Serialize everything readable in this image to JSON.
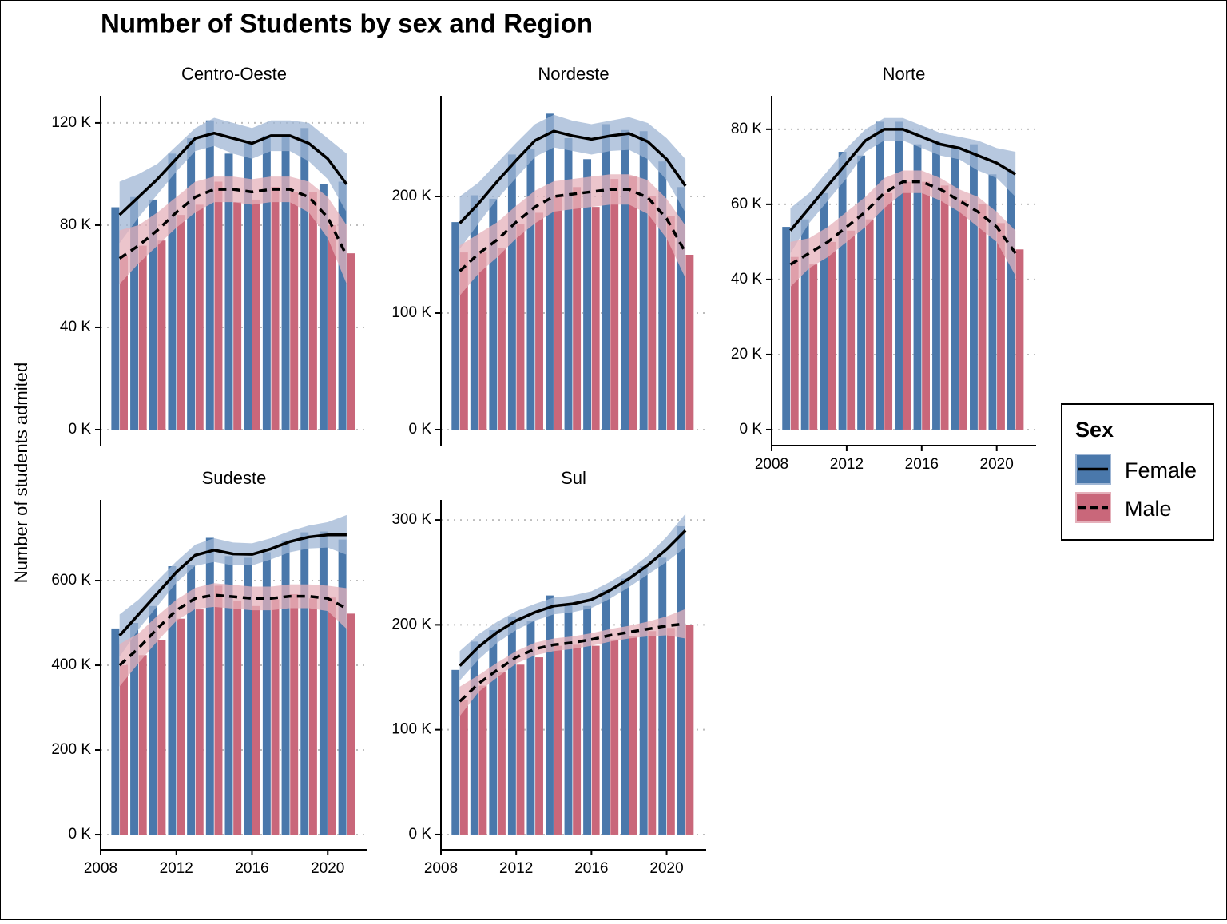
{
  "title": "Number of Students by sex and Region",
  "y_label": "Number of students admited",
  "legend_title": "Sex",
  "chart_data": [
    {
      "type": "bar",
      "title": "Centro-Oeste",
      "x": [
        2009,
        2010,
        2011,
        2012,
        2013,
        2014,
        2015,
        2016,
        2017,
        2018,
        2019,
        2020,
        2021
      ],
      "xlim": [
        2008,
        2022.1
      ],
      "ylim": [
        -6.25,
        130.6
      ],
      "yticks": [
        {
          "value": 0,
          "label": "0 K"
        },
        {
          "value": 40,
          "label": "40 K"
        },
        {
          "value": 80,
          "label": "80 K"
        },
        {
          "value": 120,
          "label": "120 K"
        }
      ],
      "grid": true,
      "series": [
        {
          "name": "Female",
          "color": "#4a78ab",
          "ribbon_color": "#9fb6d4",
          "values": [
            87,
            91,
            90,
            108,
            114,
            121,
            108,
            112,
            115,
            115,
            118,
            96,
            97
          ],
          "smooth": [
            84,
            91,
            98,
            106,
            114,
            116,
            114,
            112,
            115,
            115,
            112,
            106,
            96
          ],
          "smooth_lower": [
            73,
            83,
            92,
            101,
            109,
            111,
            108,
            106,
            109,
            109,
            105,
            98,
            85
          ],
          "smooth_upper": [
            97,
            100,
            104,
            111,
            118,
            122,
            120,
            118,
            121,
            121,
            120,
            114,
            108
          ]
        },
        {
          "name": "Male",
          "color": "#c9677a",
          "ribbon_color": "#e5b1bb",
          "values": [
            68,
            72,
            74,
            84,
            88,
            97,
            89,
            90,
            95,
            93,
            93,
            80,
            69
          ],
          "smooth": [
            67,
            72,
            78,
            85,
            91,
            94,
            94,
            93,
            94,
            94,
            91,
            83,
            68
          ],
          "smooth_lower": [
            57,
            65,
            72,
            79,
            85,
            89,
            89,
            88,
            89,
            89,
            85,
            75,
            57
          ],
          "smooth_upper": [
            78,
            80,
            85,
            91,
            97,
            99,
            99,
            98,
            99,
            99,
            97,
            91,
            80
          ]
        }
      ]
    },
    {
      "type": "bar",
      "title": "Nordeste",
      "x": [
        2009,
        2010,
        2011,
        2012,
        2013,
        2014,
        2015,
        2016,
        2017,
        2018,
        2019,
        2020,
        2021
      ],
      "xlim": [
        2008,
        2022.1
      ],
      "ylim": [
        -13.7,
        286.3
      ],
      "yticks": [
        {
          "value": 0,
          "label": "0 K"
        },
        {
          "value": 100,
          "label": "100 K"
        },
        {
          "value": 200,
          "label": "200 K"
        }
      ],
      "grid": true,
      "series": [
        {
          "name": "Female",
          "color": "#4a78ab",
          "ribbon_color": "#9fb6d4",
          "values": [
            178,
            201,
            198,
            236,
            241,
            271,
            250,
            232,
            262,
            257,
            256,
            230,
            208
          ],
          "smooth": [
            177,
            194,
            213,
            231,
            248,
            256,
            252,
            249,
            252,
            254,
            247,
            232,
            209
          ],
          "smooth_lower": [
            155,
            177,
            198,
            216,
            234,
            242,
            239,
            236,
            239,
            240,
            232,
            214,
            186
          ],
          "smooth_upper": [
            200,
            212,
            229,
            246,
            262,
            270,
            265,
            262,
            265,
            268,
            263,
            250,
            232
          ]
        },
        {
          "name": "Male",
          "color": "#c9677a",
          "ribbon_color": "#e5b1bb",
          "values": [
            152,
            152,
            156,
            176,
            186,
            200,
            208,
            191,
            215,
            217,
            200,
            183,
            150
          ],
          "smooth": [
            136,
            151,
            163,
            178,
            191,
            200,
            202,
            204,
            206,
            206,
            199,
            181,
            152
          ],
          "smooth_lower": [
            115,
            134,
            148,
            164,
            177,
            187,
            189,
            191,
            193,
            193,
            185,
            164,
            130
          ],
          "smooth_upper": [
            158,
            168,
            178,
            192,
            205,
            213,
            215,
            217,
            219,
            219,
            214,
            198,
            175
          ]
        }
      ]
    },
    {
      "type": "bar",
      "title": "Norte",
      "x": [
        2009,
        2010,
        2011,
        2012,
        2013,
        2014,
        2015,
        2016,
        2017,
        2018,
        2019,
        2020,
        2021
      ],
      "xlim": [
        2008,
        2022.1
      ],
      "xticks": [
        2008,
        2012,
        2016,
        2020
      ],
      "ylim": [
        -4.26,
        88.9
      ],
      "yticks": [
        {
          "value": 0,
          "label": "0 K"
        },
        {
          "value": 20,
          "label": "20 K"
        },
        {
          "value": 40,
          "label": "40 K"
        },
        {
          "value": 60,
          "label": "60 K"
        },
        {
          "value": 80,
          "label": "80 K"
        }
      ],
      "grid": true,
      "series": [
        {
          "name": "Female",
          "color": "#4a78ab",
          "ribbon_color": "#9fb6d4",
          "values": [
            54,
            56,
            63,
            74,
            73,
            82,
            82,
            76,
            77,
            75,
            76,
            68,
            69
          ],
          "smooth": [
            53,
            59,
            65,
            71,
            77,
            80,
            80,
            78,
            76,
            75,
            73,
            71,
            68
          ],
          "smooth_lower": [
            47,
            55,
            61,
            67,
            74,
            77,
            77,
            75,
            73,
            72,
            69,
            67,
            62
          ],
          "smooth_upper": [
            59,
            63,
            69,
            75,
            80,
            83,
            83,
            81,
            79,
            78,
            77,
            75,
            74
          ]
        },
        {
          "name": "Male",
          "color": "#c9677a",
          "ribbon_color": "#e5b1bb",
          "values": [
            46,
            44,
            50,
            53,
            56,
            63,
            66,
            66,
            65,
            61,
            60,
            55,
            48
          ],
          "smooth": [
            44,
            47,
            50,
            54,
            58,
            63,
            66,
            66,
            64,
            61,
            58,
            54,
            47
          ],
          "smooth_lower": [
            38,
            43,
            46,
            50,
            54,
            59,
            63,
            63,
            61,
            58,
            54,
            50,
            41
          ],
          "smooth_upper": [
            50,
            51,
            54,
            58,
            62,
            67,
            69,
            69,
            67,
            64,
            62,
            58,
            53
          ]
        }
      ]
    },
    {
      "type": "bar",
      "title": "Sudeste",
      "x": [
        2009,
        2010,
        2011,
        2012,
        2013,
        2014,
        2015,
        2016,
        2017,
        2018,
        2019,
        2020,
        2021
      ],
      "xlim": [
        2008,
        2022.1
      ],
      "xticks": [
        2008,
        2012,
        2016,
        2020
      ],
      "ylim": [
        -35.8,
        790.6
      ],
      "yticks": [
        {
          "value": 0,
          "label": "0 K"
        },
        {
          "value": 200,
          "label": "200 K"
        },
        {
          "value": 400,
          "label": "400 K"
        },
        {
          "value": 600,
          "label": "600 K"
        }
      ],
      "grid": true,
      "series": [
        {
          "name": "Female",
          "color": "#4a78ab",
          "ribbon_color": "#9fb6d4",
          "values": [
            487,
            500,
            540,
            634,
            636,
            701,
            658,
            654,
            667,
            695,
            714,
            716,
            697
          ],
          "smooth": [
            470,
            520,
            570,
            620,
            660,
            672,
            663,
            662,
            675,
            692,
            703,
            708,
            708
          ],
          "smooth_lower": [
            420,
            485,
            540,
            595,
            635,
            644,
            636,
            636,
            650,
            667,
            676,
            678,
            661
          ],
          "smooth_upper": [
            520,
            555,
            600,
            645,
            685,
            700,
            690,
            688,
            700,
            717,
            730,
            738,
            755
          ]
        },
        {
          "name": "Male",
          "color": "#c9677a",
          "ribbon_color": "#e5b1bb",
          "values": [
            400,
            424,
            459,
            510,
            532,
            588,
            553,
            540,
            556,
            568,
            558,
            560,
            522
          ],
          "smooth": [
            400,
            440,
            487,
            530,
            558,
            566,
            562,
            558,
            558,
            563,
            563,
            558,
            534
          ],
          "smooth_lower": [
            350,
            405,
            457,
            505,
            533,
            538,
            534,
            530,
            530,
            535,
            535,
            528,
            486
          ],
          "smooth_upper": [
            450,
            475,
            517,
            555,
            583,
            594,
            590,
            586,
            586,
            591,
            591,
            588,
            582
          ]
        }
      ]
    },
    {
      "type": "bar",
      "title": "Sul",
      "x": [
        2009,
        2010,
        2011,
        2012,
        2013,
        2014,
        2015,
        2016,
        2017,
        2018,
        2019,
        2020,
        2021
      ],
      "xlim": [
        2008,
        2022.1
      ],
      "xticks": [
        2008,
        2012,
        2016,
        2020
      ],
      "ylim": [
        -14.5,
        319.1
      ],
      "yticks": [
        {
          "value": 0,
          "label": "0 K"
        },
        {
          "value": 100,
          "label": "100 K"
        },
        {
          "value": 200,
          "label": "200 K"
        },
        {
          "value": 300,
          "label": "300 K"
        }
      ],
      "grid": true,
      "series": [
        {
          "name": "Female",
          "color": "#4a78ab",
          "ribbon_color": "#9fb6d4",
          "values": [
            157,
            184,
            195,
            208,
            204,
            228,
            219,
            218,
            233,
            244,
            256,
            264,
            294
          ],
          "smooth": [
            161,
            179,
            193,
            204,
            212,
            218,
            220,
            224,
            233,
            244,
            257,
            272,
            290
          ],
          "smooth_lower": [
            147,
            167,
            183,
            195,
            204,
            210,
            212,
            216,
            225,
            236,
            248,
            260,
            274
          ],
          "smooth_upper": [
            175,
            191,
            203,
            213,
            220,
            226,
            228,
            232,
            241,
            252,
            266,
            284,
            306
          ]
        },
        {
          "name": "Male",
          "color": "#c9677a",
          "ribbon_color": "#e5b1bb",
          "values": [
            128,
            142,
            155,
            162,
            169,
            180,
            181,
            180,
            186,
            189,
            194,
            197,
            200
          ],
          "smooth": [
            127,
            144,
            157,
            169,
            177,
            181,
            183,
            186,
            190,
            193,
            196,
            199,
            201
          ],
          "smooth_lower": [
            113,
            136,
            150,
            163,
            171,
            175,
            177,
            180,
            184,
            187,
            189,
            190,
            187
          ],
          "smooth_upper": [
            141,
            152,
            164,
            175,
            183,
            187,
            189,
            192,
            196,
            199,
            203,
            208,
            215
          ]
        }
      ]
    }
  ]
}
